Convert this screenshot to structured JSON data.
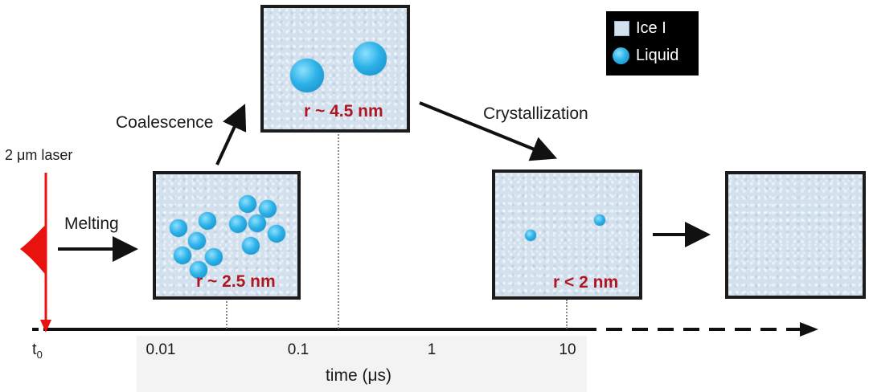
{
  "laser": {
    "label": "2 μm laser",
    "color": "#e8130f"
  },
  "processes": {
    "melting": "Melting",
    "coalescence": "Coalescence",
    "crystallization": "Crystallization"
  },
  "panels": {
    "p1": {
      "radius_label": "r ~ 2.5 nm"
    },
    "p2": {
      "radius_label": "r ~ 4.5 nm"
    },
    "p3": {
      "radius_label": "r < 2 nm"
    }
  },
  "legend": {
    "items": [
      {
        "name": "Ice I",
        "icon": "ice-square-icon"
      },
      {
        "name": "Liquid",
        "icon": "liquid-droplet-icon"
      }
    ]
  },
  "axis": {
    "origin_label": "t",
    "origin_sub": "0",
    "tick_labels": [
      "0.01",
      "0.1",
      "1",
      "10"
    ],
    "xlabel": "time (μs)"
  },
  "colors": {
    "ice": "#d3e1ee",
    "liquid": "#2db3e8",
    "radius_text": "#b01620",
    "laser": "#e8130f"
  }
}
